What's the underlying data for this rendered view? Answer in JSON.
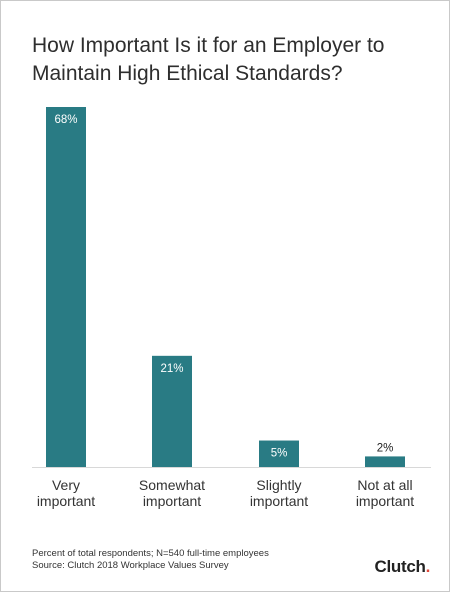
{
  "chart_data": {
    "type": "bar",
    "title": "How Important Is it for an Employer to Maintain High Ethical Standards?",
    "categories": [
      "Very important",
      "Somewhat important",
      "Slightly important",
      "Not at all important"
    ],
    "category_lines": [
      [
        "Very",
        "important"
      ],
      [
        "Somewhat",
        "important"
      ],
      [
        "Slightly",
        "important"
      ],
      [
        "Not at all",
        "important"
      ]
    ],
    "values": [
      68,
      21,
      5,
      2
    ],
    "data_labels": [
      "68%",
      "21%",
      "5%",
      "2%"
    ],
    "ylim": [
      0,
      68
    ],
    "grid": false,
    "legend": "none",
    "bar_color": "#297b84",
    "label_color": "#ffffff",
    "outside_label_color": "#222222"
  },
  "footnote": {
    "line1": "Percent of total respondents; N=540 full-time employees",
    "line2": "Source: Clutch 2018 Workplace Values Survey"
  },
  "logo": {
    "text": "Clutch"
  }
}
